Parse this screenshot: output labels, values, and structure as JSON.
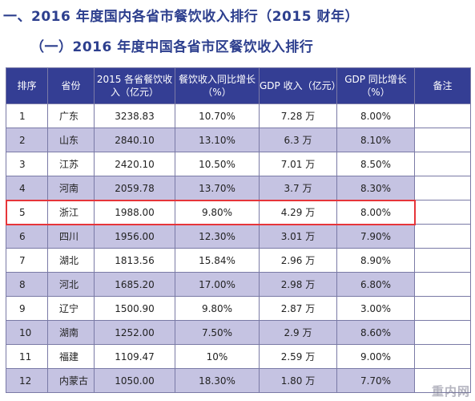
{
  "title_main": "一、2016 年度国内各省市餐饮收入排行（2015 财年）",
  "title_sub": "（一）2016 年度中国各省市区餐饮收入排行",
  "table": {
    "headers": [
      "排序",
      "省份",
      "2015 各省餐饮收入（亿元）",
      "餐饮收入同比增长（%）",
      "GDP 收入（亿元）",
      "GDP 同比增长（%）",
      "备注"
    ],
    "rows": [
      {
        "rank": "1",
        "province": "广东",
        "revenue": "3238.83",
        "rev_growth": "10.70%",
        "gdp": "7.28 万",
        "gdp_growth": "8.00%",
        "note": ""
      },
      {
        "rank": "2",
        "province": "山东",
        "revenue": "2840.10",
        "rev_growth": "13.10%",
        "gdp": "6.3 万",
        "gdp_growth": "8.10%",
        "note": ""
      },
      {
        "rank": "3",
        "province": "江苏",
        "revenue": "2420.10",
        "rev_growth": "10.50%",
        "gdp": "7.01 万",
        "gdp_growth": "8.50%",
        "note": ""
      },
      {
        "rank": "4",
        "province": "河南",
        "revenue": "2059.78",
        "rev_growth": "13.70%",
        "gdp": "3.7 万",
        "gdp_growth": "8.30%",
        "note": ""
      },
      {
        "rank": "5",
        "province": "浙江",
        "revenue": "1988.00",
        "rev_growth": "9.80%",
        "gdp": "4.29 万",
        "gdp_growth": "8.00%",
        "note": ""
      },
      {
        "rank": "6",
        "province": "四川",
        "revenue": "1956.00",
        "rev_growth": "12.30%",
        "gdp": "3.01 万",
        "gdp_growth": "7.90%",
        "note": ""
      },
      {
        "rank": "7",
        "province": "湖北",
        "revenue": "1813.56",
        "rev_growth": "15.84%",
        "gdp": "2.96 万",
        "gdp_growth": "8.90%",
        "note": ""
      },
      {
        "rank": "8",
        "province": "河北",
        "revenue": "1685.20",
        "rev_growth": "17.00%",
        "gdp": "2.98 万",
        "gdp_growth": "6.80%",
        "note": ""
      },
      {
        "rank": "9",
        "province": "辽宁",
        "revenue": "1500.90",
        "rev_growth": "9.80%",
        "gdp": "2.87 万",
        "gdp_growth": "3.00%",
        "note": ""
      },
      {
        "rank": "10",
        "province": "湖南",
        "revenue": "1252.00",
        "rev_growth": "7.50%",
        "gdp": "2.9 万",
        "gdp_growth": "8.60%",
        "note": ""
      },
      {
        "rank": "11",
        "province": "福建",
        "revenue": "1109.47",
        "rev_growth": "10%",
        "gdp": "2.59 万",
        "gdp_growth": "9.00%",
        "note": ""
      },
      {
        "rank": "12",
        "province": "内蒙古",
        "revenue": "1050.00",
        "rev_growth": "18.30%",
        "gdp": "1.80 万",
        "gdp_growth": "7.70%",
        "note": ""
      }
    ],
    "highlight_row": "5",
    "highlight_color": "#e6353a",
    "header_bg": "#343e94",
    "stripe_bg": "#c5c3e2"
  },
  "watermark": "重内网"
}
